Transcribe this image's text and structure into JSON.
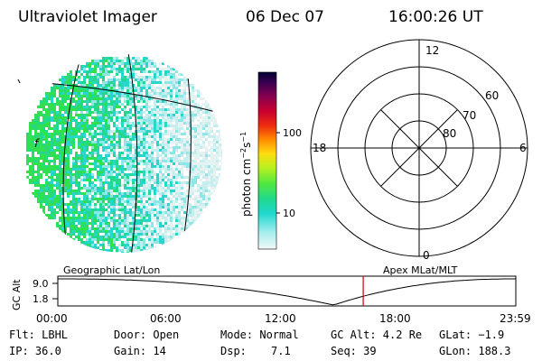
{
  "header": {
    "title": "Ultraviolet Imager",
    "date": "06 Dec 07",
    "time": "16:00:26 UT"
  },
  "image_panel": {
    "label": "Geographic Lat/Lon",
    "marker": "f"
  },
  "color_bar": {
    "unit_text": "photon cm",
    "unit_sup1": "−2",
    "unit_mid": "s",
    "unit_sup2": "−1",
    "ticks": [
      "100",
      "10"
    ]
  },
  "polar_plot": {
    "label": "Apex MLat/MLT",
    "mlt_labels": {
      "top": "12",
      "left": "18",
      "right": "6",
      "bottom": "0"
    },
    "lat_labels": [
      "60",
      "70",
      "80"
    ]
  },
  "timeline": {
    "axis_label": "GC Alt",
    "y_ticks": [
      "9.0",
      "1.8"
    ],
    "x_ticks": [
      "00:00",
      "06:00",
      "12:00",
      "18:00",
      "23:59"
    ],
    "current_time_hours": 16.007,
    "line_color": "#000000",
    "marker_color": "#cc0000"
  },
  "status": {
    "row1": [
      "Flt: LBHL",
      "Door: Open",
      "Mode: Normal",
      "GC Alt: 4.2 Re",
      "GLat: −1.9"
    ],
    "row2": [
      "IP: 36.0",
      "Gain: 14",
      "Dsp:",
      "7.1",
      "Seq: 39",
      "GLon: 188.3"
    ]
  },
  "colors": {
    "scale": [
      "#000033",
      "#55004a",
      "#8a0050",
      "#c0003a",
      "#e0101a",
      "#ff5a00",
      "#ffaa00",
      "#ffee22",
      "#c8f020",
      "#70ee30",
      "#20dd60",
      "#20d8c8",
      "#70e8e8",
      "#c8f2f2",
      "#eef8f8"
    ]
  }
}
